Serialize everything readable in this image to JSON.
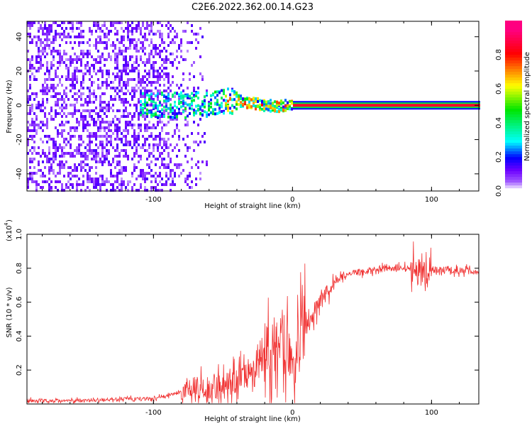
{
  "title": "C2E6.2022.362.00.14.G23",
  "chart_data": [
    {
      "type": "heatmap",
      "xlabel": "Height of straight line (km)",
      "ylabel": "Frequency (Hz)",
      "xlim": [
        -191,
        134
      ],
      "ylim": [
        -50,
        49
      ],
      "xticks": [
        -100,
        0,
        100
      ],
      "xtick_labels": [
        "-100",
        "0",
        "100"
      ],
      "yticks": [
        -40,
        -20,
        0,
        20,
        40
      ],
      "ytick_labels": [
        "-40",
        "-20",
        "0",
        "20",
        "40"
      ],
      "colorbar": {
        "label": "Normalized spectral amplitude",
        "range": [
          0,
          1
        ],
        "ticks": [
          "0.0",
          "0.2",
          "0.4",
          "0.6",
          "0.8"
        ],
        "colors": [
          "#ffffff",
          "#8000ff",
          "#0000ff",
          "#00ffff",
          "#00ff00",
          "#ffff00",
          "#ff0000",
          "#ff0080"
        ]
      },
      "signal_center_hz": {
        "x": [
          -100,
          -80,
          -60,
          -50,
          -40,
          -30,
          -20,
          -10,
          -5,
          0,
          10,
          134
        ],
        "y": [
          0,
          0,
          1,
          2,
          3,
          1,
          0,
          -1,
          0,
          0,
          0,
          0
        ]
      },
      "strong_signal_from_km": 0
    },
    {
      "type": "line",
      "xlabel": "Height of straight line (km)",
      "ylabel": "SNR (10 * v/v)",
      "yscale_label": "(x10",
      "yscale_exp": "4",
      "xlim": [
        -191,
        134
      ],
      "ylim": [
        0,
        1.0
      ],
      "xticks": [
        -100,
        0,
        100
      ],
      "xtick_labels": [
        "-100",
        "0",
        "100"
      ],
      "yticks": [
        0.2,
        0.4,
        0.6,
        0.8,
        1.0
      ],
      "ytick_labels": [
        "0.2",
        "0.4",
        "0.6",
        "0.8",
        "1.0"
      ],
      "color": "#f03030",
      "series": [
        {
          "name": "SNR",
          "x": [
            -191,
            -150,
            -120,
            -100,
            -90,
            -80,
            -70,
            -60,
            -50,
            -40,
            -30,
            -20,
            -10,
            -5,
            0,
            5,
            10,
            20,
            30,
            40,
            60,
            70,
            80,
            90,
            100,
            110,
            134
          ],
          "y": [
            0.02,
            0.02,
            0.03,
            0.03,
            0.05,
            0.07,
            0.08,
            0.08,
            0.1,
            0.15,
            0.22,
            0.28,
            0.33,
            0.38,
            0.3,
            0.38,
            0.45,
            0.6,
            0.72,
            0.77,
            0.79,
            0.8,
            0.8,
            0.8,
            0.79,
            0.79,
            0.78
          ]
        }
      ]
    }
  ]
}
